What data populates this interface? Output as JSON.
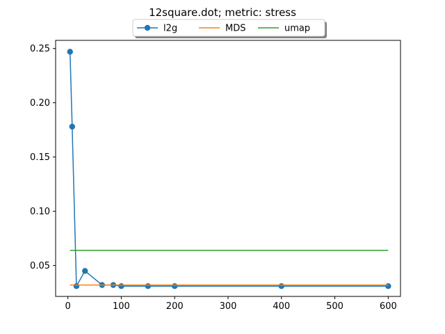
{
  "chart_data": {
    "type": "line",
    "title": "12square.dot; metric: stress",
    "xlabel": "",
    "ylabel": "",
    "xlim": [
      -23,
      623
    ],
    "ylim": [
      0.0215,
      0.2575
    ],
    "x_ticks": [
      0,
      100,
      200,
      300,
      400,
      500,
      600
    ],
    "y_ticks": [
      0.05,
      0.1,
      0.15,
      0.2,
      0.25
    ],
    "y_tick_labels": [
      "0.05",
      "0.10",
      "0.15",
      "0.20",
      "0.25"
    ],
    "grid": false,
    "legend_position": "top-center, above plot",
    "series": [
      {
        "name": "l2g",
        "color": "#1f77b4",
        "marker": "circle",
        "x": [
          4,
          8,
          16,
          32,
          64,
          85,
          100,
          150,
          200,
          400,
          600
        ],
        "y": [
          0.247,
          0.178,
          0.031,
          0.045,
          0.032,
          0.032,
          0.031,
          0.031,
          0.031,
          0.031,
          0.031
        ]
      },
      {
        "name": "MDS",
        "color": "#ff7f0e",
        "marker": "none",
        "x": [
          4,
          600
        ],
        "y": [
          0.032,
          0.032
        ]
      },
      {
        "name": "umap",
        "color": "#2ca02c",
        "marker": "none",
        "x": [
          4,
          600
        ],
        "y": [
          0.064,
          0.064
        ]
      }
    ]
  }
}
